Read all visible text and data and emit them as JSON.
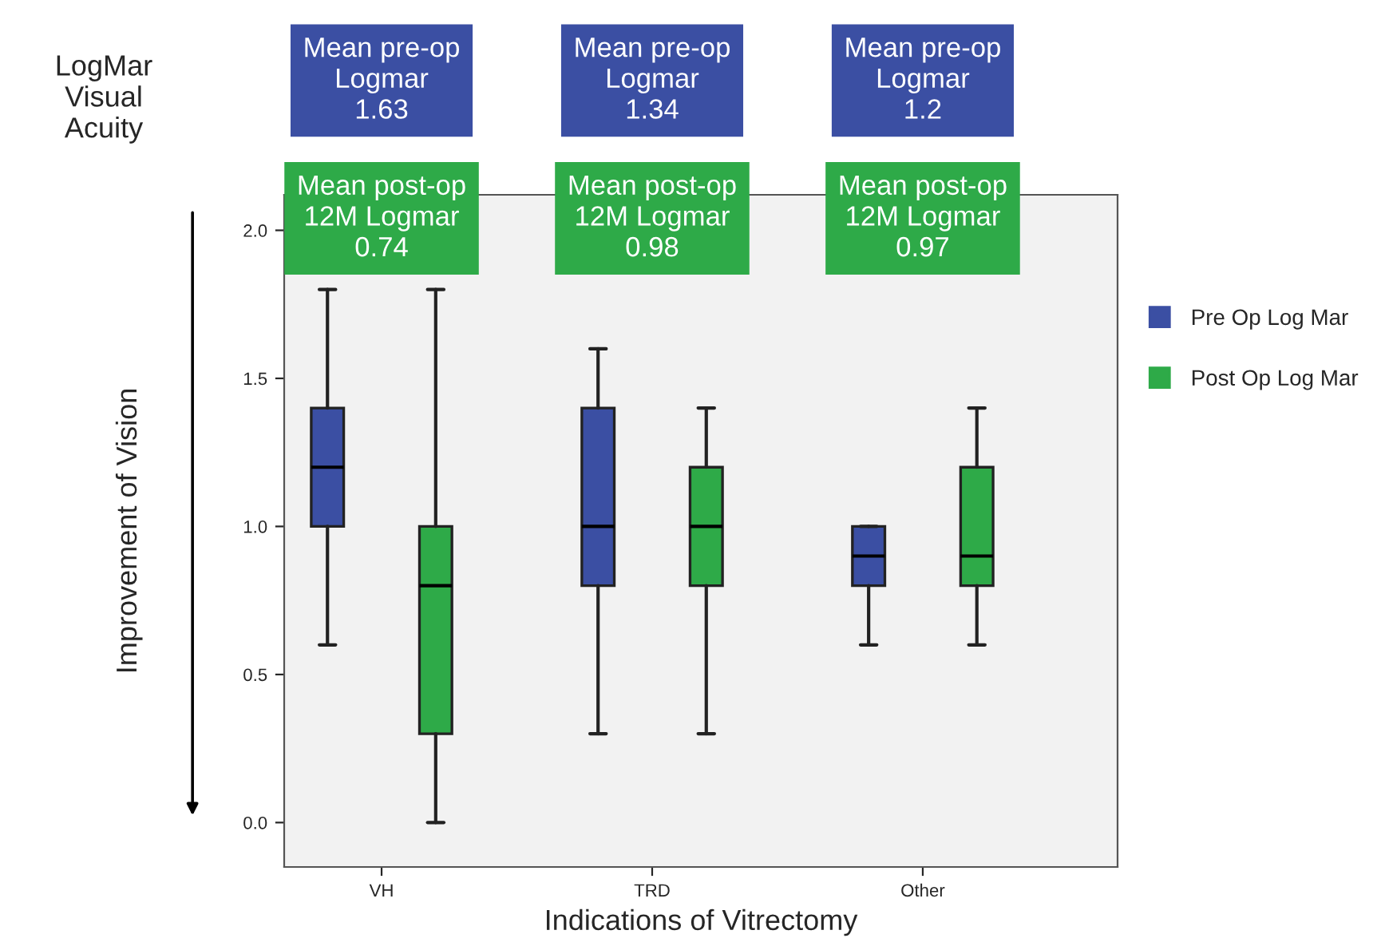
{
  "chart_data": {
    "type": "box",
    "xlabel": "Indications of Vitrectomy",
    "ylabel": "Improvement of Vision",
    "categories": [
      "VH",
      "TRD",
      "Other"
    ],
    "ylim": [
      -0.15,
      2.12
    ],
    "yticks": [
      {
        "value": 0,
        "label": "0.0"
      },
      {
        "value": 0.5,
        "label": "0.5"
      },
      {
        "value": 1,
        "label": "1.0"
      },
      {
        "value": 1.5,
        "label": "1.5"
      },
      {
        "value": 2,
        "label": "2.0"
      }
    ],
    "series": [
      {
        "name": "Pre Op Log Mar",
        "color": "#3b4fa3",
        "boxes": [
          {
            "low": 0.6,
            "q1": 1.0,
            "median": 1.2,
            "q3": 1.4,
            "high": 1.8
          },
          {
            "low": 0.3,
            "q1": 0.8,
            "median": 1.0,
            "q3": 1.4,
            "high": 1.6
          },
          {
            "low": 0.6,
            "q1": 0.8,
            "median": 0.9,
            "q3": 1.0,
            "high": 1.0
          }
        ]
      },
      {
        "name": "Post Op Log Mar",
        "color": "#2eaa48",
        "boxes": [
          {
            "low": 0.0,
            "q1": 0.3,
            "median": 0.8,
            "q3": 1.0,
            "high": 1.8
          },
          {
            "low": 0.3,
            "q1": 0.8,
            "median": 1.0,
            "q3": 1.2,
            "high": 1.4
          },
          {
            "low": 0.6,
            "q1": 0.8,
            "median": 0.9,
            "q3": 1.2,
            "high": 1.4
          }
        ]
      }
    ],
    "annotations": [
      "LogMar\nVisual\nAcuity",
      "Mean pre-op\nLogmar\n1.63",
      "Mean post-op\n12M Logmar\n0.74",
      "Mean pre-op\nLogmar\n1.34",
      "Mean post-op\n12M Logmar\n0.98",
      "Mean pre-op\nLogmar\n1.2",
      "Mean post-op\n12M Logmar\n0.97"
    ],
    "legend": "right",
    "grid": false
  }
}
